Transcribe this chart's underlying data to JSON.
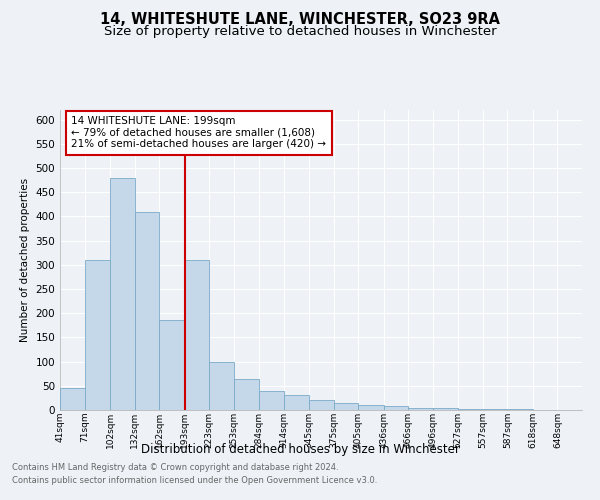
{
  "title": "14, WHITESHUTE LANE, WINCHESTER, SO23 9RA",
  "subtitle": "Size of property relative to detached houses in Winchester",
  "xlabel": "Distribution of detached houses by size in Winchester",
  "ylabel": "Number of detached properties",
  "footnote1": "Contains HM Land Registry data © Crown copyright and database right 2024.",
  "footnote2": "Contains public sector information licensed under the Open Government Licence v3.0.",
  "annotation_line1": "14 WHITESHUTE LANE: 199sqm",
  "annotation_line2": "← 79% of detached houses are smaller (1,608)",
  "annotation_line3": "21% of semi-detached houses are larger (420) →",
  "property_sqm": 199,
  "bar_edges": [
    41,
    71,
    102,
    132,
    162,
    193,
    223,
    253,
    284,
    314,
    345,
    375,
    405,
    436,
    466,
    496,
    527,
    557,
    587,
    618,
    648
  ],
  "bar_labels": [
    "41sqm",
    "71sqm",
    "102sqm",
    "132sqm",
    "162sqm",
    "193sqm",
    "223sqm",
    "253sqm",
    "284sqm",
    "314sqm",
    "345sqm",
    "375sqm",
    "405sqm",
    "436sqm",
    "466sqm",
    "496sqm",
    "527sqm",
    "557sqm",
    "587sqm",
    "618sqm",
    "648sqm"
  ],
  "bar_heights": [
    45,
    310,
    480,
    410,
    185,
    310,
    100,
    65,
    40,
    30,
    20,
    15,
    10,
    8,
    5,
    4,
    3,
    2,
    2,
    1,
    1
  ],
  "bar_color": "#c5d8ea",
  "bar_edge_color": "#7aaac8",
  "vline_color": "#cc0000",
  "vline_x": 193,
  "ylim": [
    0,
    620
  ],
  "yticks": [
    0,
    50,
    100,
    150,
    200,
    250,
    300,
    350,
    400,
    450,
    500,
    550,
    600
  ],
  "bg_color": "#eef2f7",
  "grid_color": "#ffffff",
  "title_fontsize": 10.5,
  "subtitle_fontsize": 9.5,
  "footnote_color": "#666666"
}
